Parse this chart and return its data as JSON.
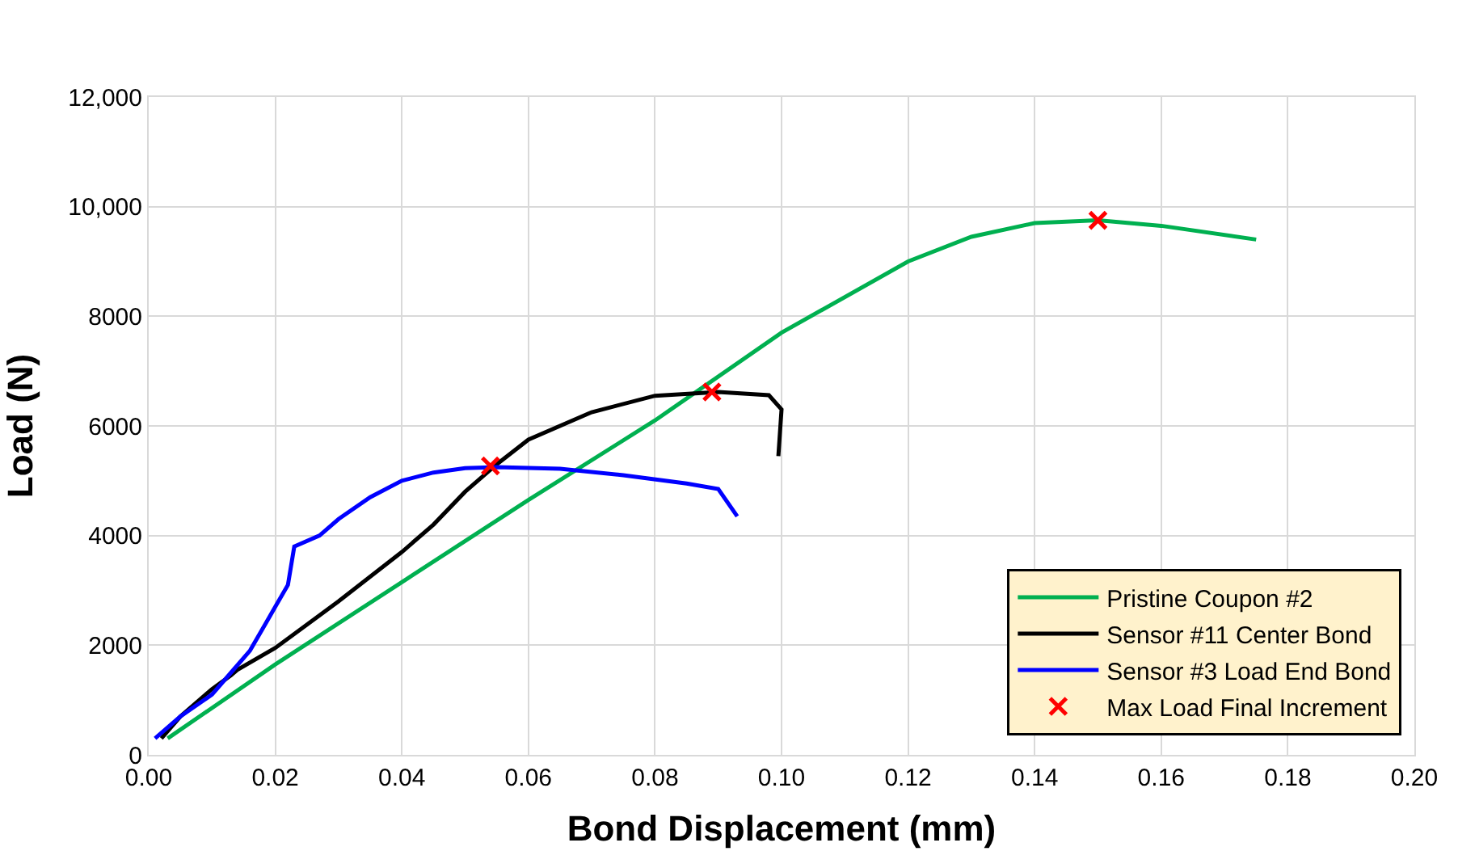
{
  "chart_data": {
    "type": "line",
    "xlabel": "Bond Displacement (mm)",
    "ylabel": "Load (N)",
    "xlim": [
      0,
      0.2
    ],
    "xticks": [
      {
        "value": 0,
        "label": "0.00"
      },
      {
        "value": 0.02,
        "label": "0.02"
      },
      {
        "value": 0.04,
        "label": "0.04"
      },
      {
        "value": 0.06,
        "label": "0.06"
      },
      {
        "value": 0.08,
        "label": "0.08"
      },
      {
        "value": 0.1,
        "label": "0.10"
      },
      {
        "value": 0.12,
        "label": "0.12"
      },
      {
        "value": 0.14,
        "label": "0.14"
      },
      {
        "value": 0.16,
        "label": "0.16"
      },
      {
        "value": 0.18,
        "label": "0.18"
      },
      {
        "value": 0.2,
        "label": "0.20"
      }
    ],
    "ylim": [
      0,
      12000
    ],
    "yticks": [
      0,
      2000,
      4000,
      6000,
      8000,
      {
        "value": 10000,
        "label": "10,000"
      },
      {
        "value": 12000,
        "label": "12,000"
      }
    ],
    "grid": true,
    "legend": "bottom right",
    "marker": "none",
    "line_style": "solid",
    "series": [
      {
        "name": "Pristine Coupon #2",
        "color": "#00b050",
        "x": [
          0.003,
          0.02,
          0.04,
          0.06,
          0.08,
          0.1,
          0.12,
          0.13,
          0.14,
          0.15,
          0.16,
          0.175
        ],
        "values": [
          300,
          1650,
          3150,
          4650,
          6100,
          7700,
          9000,
          9450,
          9700,
          9750,
          9650,
          9400
        ]
      },
      {
        "name": "Sensor #11 Center Bond",
        "color": "#000000",
        "x": [
          0.002,
          0.005,
          0.01,
          0.013,
          0.014,
          0.02,
          0.03,
          0.04,
          0.045,
          0.05,
          0.055,
          0.06,
          0.07,
          0.08,
          0.09,
          0.098,
          0.1,
          0.0995
        ],
        "values": [
          300,
          700,
          1200,
          1450,
          1550,
          1950,
          2800,
          3700,
          4200,
          4800,
          5300,
          5750,
          6250,
          6550,
          6620,
          6560,
          6300,
          5450
        ]
      },
      {
        "name": "Sensor #3 Load End Bond",
        "color": "#0000ff",
        "x": [
          0.001,
          0.005,
          0.01,
          0.013,
          0.016,
          0.018,
          0.02,
          0.022,
          0.023,
          0.027,
          0.03,
          0.035,
          0.04,
          0.045,
          0.05,
          0.055,
          0.065,
          0.075,
          0.085,
          0.09,
          0.093
        ],
        "values": [
          300,
          700,
          1100,
          1500,
          1900,
          2300,
          2700,
          3100,
          3800,
          4000,
          4300,
          4700,
          5000,
          5150,
          5230,
          5250,
          5220,
          5100,
          4950,
          4850,
          4350
        ]
      },
      {
        "name": "Max Load Final Increment",
        "type": "scatter",
        "marker": "cross",
        "color": "#ff0000",
        "x": [
          0.054,
          0.089,
          0.15
        ],
        "values": [
          5270,
          6620,
          9750
        ]
      }
    ]
  }
}
